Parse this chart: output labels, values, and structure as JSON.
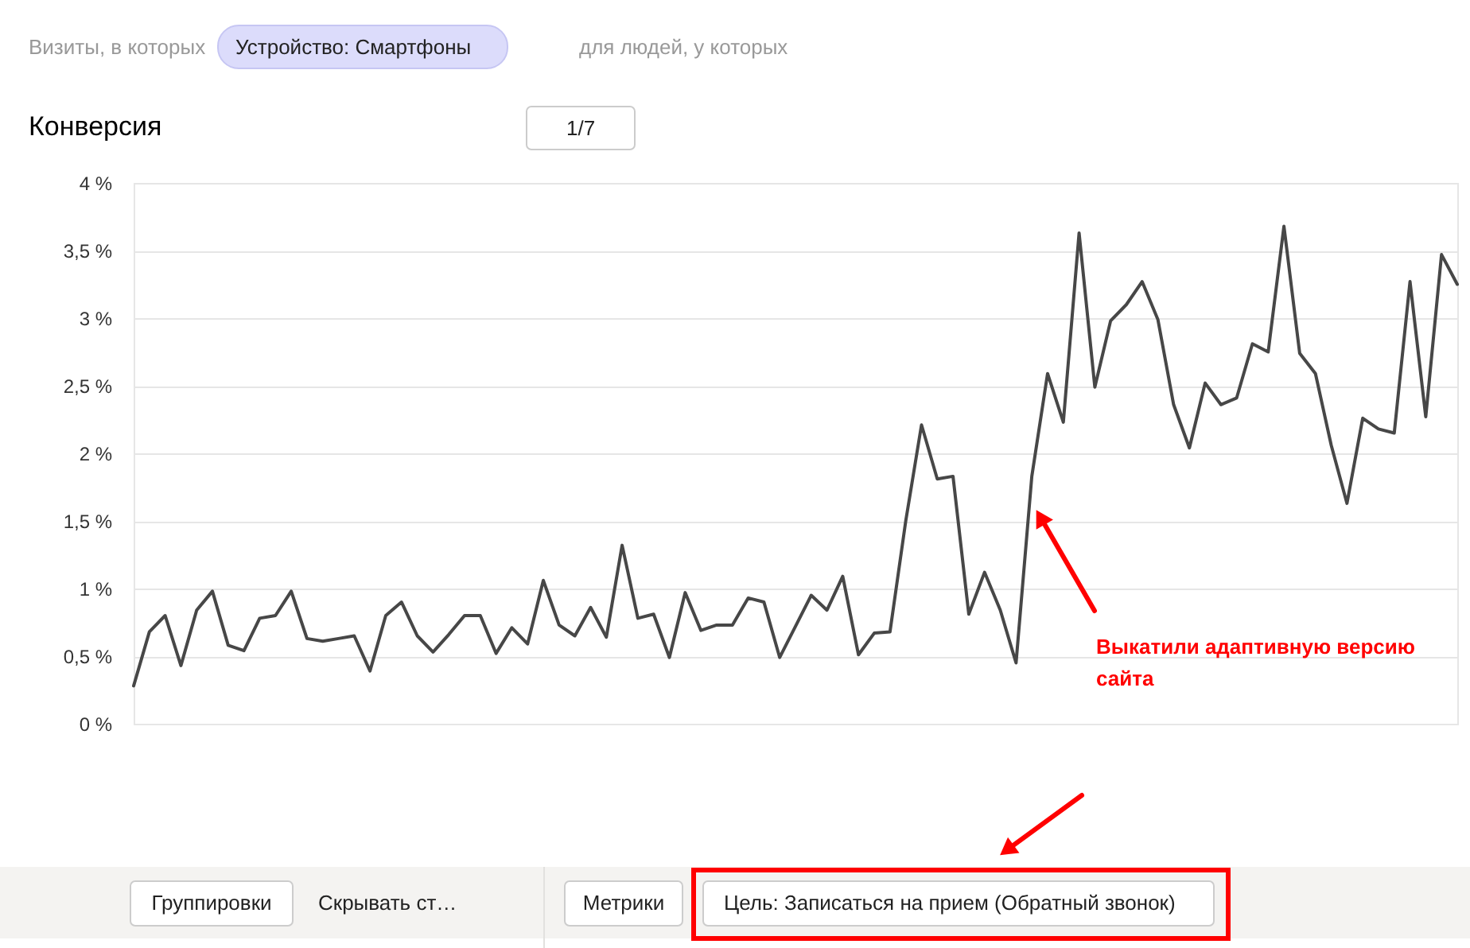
{
  "chart_data": {
    "type": "line",
    "title": "Конверсия",
    "categories": [
      null,
      null,
      null,
      null,
      null,
      null,
      null,
      null,
      null,
      null,
      null,
      null,
      null,
      null,
      null,
      null,
      null,
      null,
      null,
      null,
      null,
      null,
      null,
      null,
      null,
      null,
      null,
      null,
      null,
      null,
      null,
      null,
      null,
      null,
      null,
      null,
      null,
      null,
      null,
      null,
      null,
      null,
      null,
      null,
      null,
      null,
      null,
      null,
      null,
      null,
      null,
      null,
      null,
      null,
      null,
      null,
      null,
      null,
      null,
      null,
      null,
      null,
      null,
      null,
      null,
      null,
      null,
      null,
      null,
      null,
      null,
      null,
      null,
      null,
      null,
      null,
      null,
      null,
      null,
      null,
      null,
      null,
      null,
      null,
      null
    ],
    "series": [
      {
        "color": "#474747",
        "values": [
          0.28,
          0.68,
          0.8,
          0.43,
          0.84,
          0.98,
          0.58,
          0.54,
          0.78,
          0.8,
          0.98,
          0.63,
          0.61,
          0.63,
          0.65,
          0.39,
          0.8,
          0.9,
          0.65,
          0.53,
          0.66,
          0.8,
          0.8,
          0.52,
          0.71,
          0.59,
          1.06,
          0.73,
          0.65,
          0.86,
          0.64,
          1.32,
          0.78,
          0.81,
          0.49,
          0.97,
          0.69,
          0.73,
          0.73,
          0.93,
          0.9,
          0.49,
          0.72,
          0.95,
          0.84,
          1.09,
          0.51,
          0.67,
          0.68,
          1.5,
          2.21,
          1.81,
          1.83,
          0.81,
          1.12,
          0.84,
          0.45,
          1.83,
          2.59,
          2.23,
          3.63,
          2.49,
          2.98,
          3.1,
          3.27,
          2.99,
          2.36,
          2.04,
          2.52,
          2.36,
          2.41,
          2.81,
          2.75,
          3.68,
          2.74,
          2.59,
          2.06,
          1.63,
          2.26,
          2.18,
          2.15,
          3.27,
          2.27,
          3.47,
          3.25
        ]
      }
    ],
    "ylim": [
      0,
      4
    ],
    "yticks": [
      {
        "value": 0,
        "label": "0 %"
      },
      {
        "value": 0.5,
        "label": "0,5 %"
      },
      {
        "value": 1,
        "label": "1 %"
      },
      {
        "value": 1.5,
        "label": "1,5 %"
      },
      {
        "value": 2,
        "label": "2 %"
      },
      {
        "value": 2.5,
        "label": "2,5 %"
      },
      {
        "value": 3,
        "label": "3 %"
      },
      {
        "value": 3.5,
        "label": "3,5 %"
      },
      {
        "value": 4,
        "label": "4 %"
      }
    ],
    "grid": "y",
    "annotations": [
      "Визиты, в которых",
      "Устройство: Смартфоны",
      "для людей, у которых",
      "1/7",
      "Группировки",
      "Скрывать ст…",
      "Метрики",
      "Цель: Записаться на прием (Обратный звонок)",
      "Выкатили адаптивную версию сайта"
    ]
  }
}
